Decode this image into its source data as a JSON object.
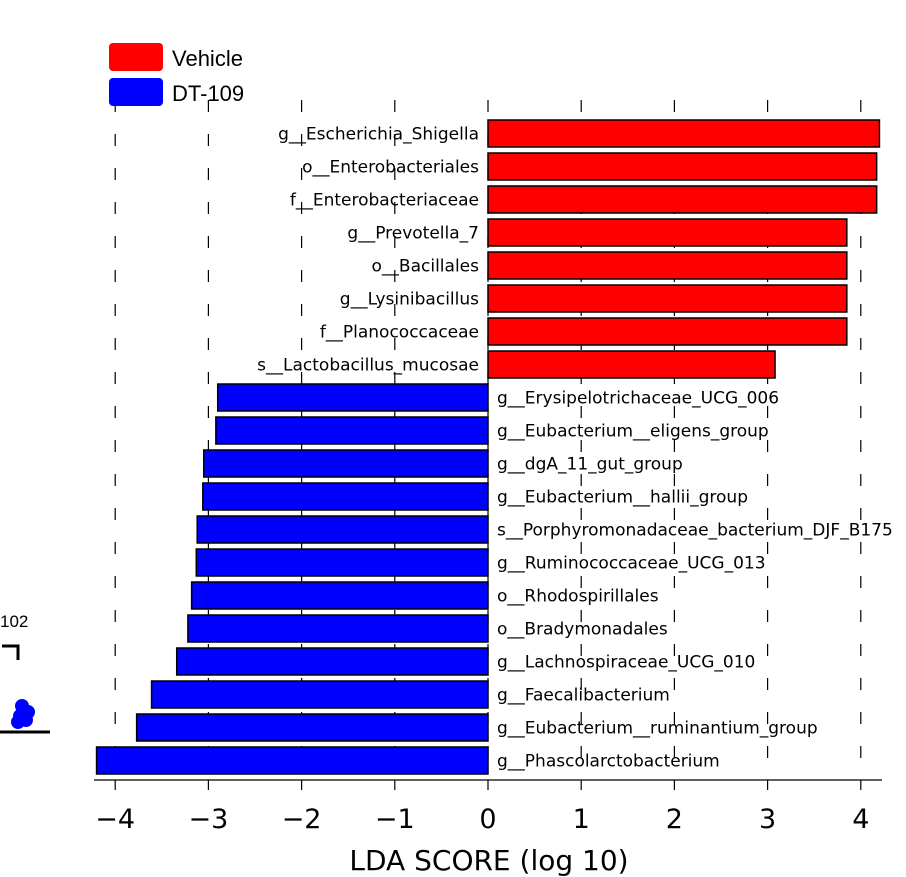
{
  "chart_data": {
    "type": "bar",
    "orientation": "horizontal",
    "title": "",
    "xlabel": "LDA SCORE (log 10)",
    "ylabel": "",
    "xlim": [
      -4.2,
      4.2
    ],
    "x_ticks": [
      -4,
      -3,
      -2,
      -1,
      0,
      1,
      2,
      3,
      4
    ],
    "x_tick_labels": [
      "−4",
      "−3",
      "−2",
      "−1",
      "0",
      "1",
      "2",
      "3",
      "4"
    ],
    "grid": "vertical dashed",
    "legend_position": "top-left",
    "series": [
      {
        "name": "Vehicle",
        "color": "#ff0000"
      },
      {
        "name": "DT-109",
        "color": "#0000ff"
      }
    ],
    "bars": [
      {
        "label": "g__Escherichia_Shigella",
        "value": 4.2,
        "group": "Vehicle"
      },
      {
        "label": "o__Enterobacteriales",
        "value": 4.17,
        "group": "Vehicle"
      },
      {
        "label": "f__Enterobacteriaceae",
        "value": 4.17,
        "group": "Vehicle"
      },
      {
        "label": "g__Prevotella_7",
        "value": 3.85,
        "group": "Vehicle"
      },
      {
        "label": "o__Bacillales",
        "value": 3.85,
        "group": "Vehicle"
      },
      {
        "label": "g__Lysinibacillus",
        "value": 3.85,
        "group": "Vehicle"
      },
      {
        "label": "f__Planococcaceae",
        "value": 3.85,
        "group": "Vehicle"
      },
      {
        "label": "s__Lactobacillus_mucosae",
        "value": 3.08,
        "group": "Vehicle"
      },
      {
        "label": "g__Erysipelotrichaceae_UCG_006",
        "value": -2.9,
        "group": "DT-109"
      },
      {
        "label": "g__Eubacterium__eligens_group",
        "value": -2.92,
        "group": "DT-109"
      },
      {
        "label": "g__dgA_11_gut_group",
        "value": -3.05,
        "group": "DT-109"
      },
      {
        "label": "g__Eubacterium__hallii_group",
        "value": -3.06,
        "group": "DT-109"
      },
      {
        "label": "s__Porphyromonadaceae_bacterium_DJF_B175",
        "value": -3.12,
        "group": "DT-109"
      },
      {
        "label": "g__Ruminococcaceae_UCG_013",
        "value": -3.13,
        "group": "DT-109"
      },
      {
        "label": "o__Rhodospirillales",
        "value": -3.18,
        "group": "DT-109"
      },
      {
        "label": "o__Bradymonadales",
        "value": -3.22,
        "group": "DT-109"
      },
      {
        "label": "g__Lachnospiraceae_UCG_010",
        "value": -3.34,
        "group": "DT-109"
      },
      {
        "label": "g__Faecalibacterium",
        "value": -3.61,
        "group": "DT-109"
      },
      {
        "label": "g__Eubacterium__ruminantium_group",
        "value": -3.77,
        "group": "DT-109"
      },
      {
        "label": "g__Phascolarctobacterium",
        "value": -4.2,
        "group": "DT-109"
      }
    ]
  },
  "edge_fragment": {
    "text": "102",
    "dot_color": "#0000ff"
  }
}
